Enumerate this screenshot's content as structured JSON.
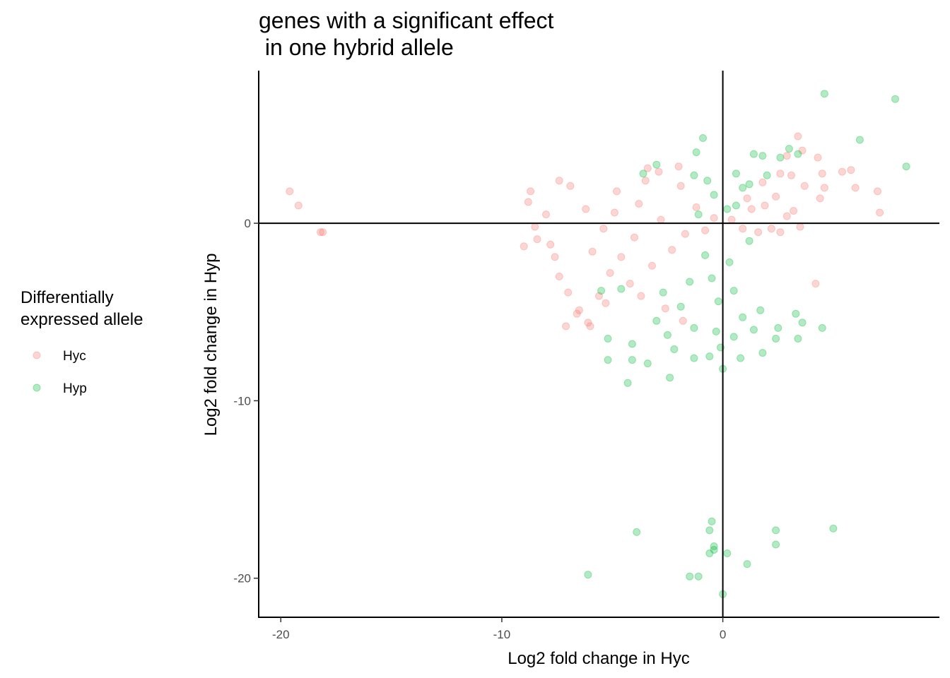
{
  "chart_data": {
    "type": "scatter",
    "title_lines": [
      "genes with a significant effect",
      " in one hybrid allele"
    ],
    "xlabel": "Log2 fold change in Hyc",
    "ylabel": "Log2 fold change in Hyp",
    "xlim": [
      -21,
      9.8
    ],
    "ylim": [
      -22.2,
      8.6
    ],
    "x_ticks": [
      -20,
      -10,
      0
    ],
    "y_ticks": [
      -20,
      -10,
      0
    ],
    "grid": false,
    "reference_lines": {
      "x": 0,
      "y": 0
    },
    "legend": {
      "title_lines": [
        "Differentially",
        "expressed allele"
      ],
      "placement": "left"
    },
    "series": [
      {
        "name": "Hyc",
        "color": "#F8766D",
        "points": [
          [
            -19.6,
            1.8
          ],
          [
            -19.2,
            1.0
          ],
          [
            -18.2,
            -0.5
          ],
          [
            -18.1,
            -0.5
          ],
          [
            -8.8,
            1.2
          ],
          [
            -8.7,
            1.8
          ],
          [
            -9.0,
            -1.3
          ],
          [
            -8.5,
            -0.2
          ],
          [
            -8.4,
            -0.9
          ],
          [
            -7.4,
            2.4
          ],
          [
            -6.9,
            2.1
          ],
          [
            -7.8,
            -1.2
          ],
          [
            -7.6,
            -1.9
          ],
          [
            -7.4,
            -3.0
          ],
          [
            -7.0,
            -3.9
          ],
          [
            -7.1,
            -5.8
          ],
          [
            -6.6,
            -5.1
          ],
          [
            -6.5,
            -4.9
          ],
          [
            -6.1,
            -5.6
          ],
          [
            -6.0,
            -5.8
          ],
          [
            -5.6,
            -4.1
          ],
          [
            -5.3,
            -4.5
          ],
          [
            -5.1,
            -2.8
          ],
          [
            -4.8,
            1.8
          ],
          [
            -4.2,
            -3.4
          ],
          [
            -3.5,
            2.4
          ],
          [
            -3.4,
            3.1
          ],
          [
            -2.9,
            2.9
          ],
          [
            -2.0,
            3.2
          ],
          [
            -1.9,
            2.1
          ],
          [
            -3.7,
            -4.1
          ],
          [
            -2.6,
            -4.8
          ],
          [
            -1.8,
            -5.5
          ],
          [
            1.8,
            2.3
          ],
          [
            2.6,
            2.8
          ],
          [
            2.9,
            3.8
          ],
          [
            3.4,
            4.9
          ],
          [
            3.6,
            4.1
          ],
          [
            3.1,
            2.7
          ],
          [
            3.7,
            2.1
          ],
          [
            4.3,
            3.7
          ],
          [
            4.5,
            2.8
          ],
          [
            4.4,
            1.4
          ],
          [
            4.6,
            2.0
          ],
          [
            5.4,
            2.9
          ],
          [
            5.8,
            3.0
          ],
          [
            6.0,
            2.0
          ],
          [
            7.0,
            1.8
          ],
          [
            7.1,
            0.6
          ],
          [
            3.5,
            -0.2
          ],
          [
            3.2,
            0.7
          ],
          [
            2.9,
            0.4
          ],
          [
            2.6,
            -0.5
          ],
          [
            4.2,
            -3.4
          ],
          [
            2.4,
            1.5
          ],
          [
            1.9,
            1.0
          ],
          [
            2.2,
            -0.3
          ],
          [
            -8.0,
            0.5
          ],
          [
            -6.2,
            0.8
          ],
          [
            -5.9,
            -1.6
          ],
          [
            -5.4,
            -0.3
          ],
          [
            -4.9,
            0.6
          ],
          [
            -4.6,
            -1.9
          ],
          [
            -4.0,
            -0.8
          ],
          [
            -3.8,
            1.1
          ],
          [
            -3.2,
            -2.4
          ],
          [
            -2.8,
            0.2
          ],
          [
            -2.3,
            -1.5
          ],
          [
            -1.7,
            -0.6
          ],
          [
            -1.2,
            0.9
          ],
          [
            -0.8,
            -0.4
          ],
          [
            -0.4,
            0.3
          ],
          [
            0.4,
            0.2
          ],
          [
            0.9,
            -0.3
          ],
          [
            1.3,
            0.8
          ],
          [
            1.6,
            -0.5
          ],
          [
            1.1,
            1.4
          ]
        ]
      },
      {
        "name": "Hyp",
        "color": "#00BA38",
        "points": [
          [
            4.6,
            7.3
          ],
          [
            7.8,
            7.0
          ],
          [
            6.2,
            4.7
          ],
          [
            8.3,
            3.2
          ],
          [
            -0.9,
            4.8
          ],
          [
            -1.2,
            4.0
          ],
          [
            1.4,
            3.9
          ],
          [
            1.8,
            3.8
          ],
          [
            2.6,
            3.7
          ],
          [
            3.0,
            4.2
          ],
          [
            3.4,
            3.9
          ],
          [
            -3.6,
            2.8
          ],
          [
            -3.0,
            3.3
          ],
          [
            -1.3,
            2.7
          ],
          [
            -0.7,
            2.4
          ],
          [
            0.6,
            2.8
          ],
          [
            1.2,
            2.2
          ],
          [
            2.0,
            2.7
          ],
          [
            -5.5,
            -3.8
          ],
          [
            -4.6,
            -3.7
          ],
          [
            -5.2,
            -6.5
          ],
          [
            -4.1,
            -6.8
          ],
          [
            -5.2,
            -7.7
          ],
          [
            -4.1,
            -7.7
          ],
          [
            -3.4,
            -7.9
          ],
          [
            -4.3,
            -9.0
          ],
          [
            -2.4,
            -8.7
          ],
          [
            -2.2,
            -7.1
          ],
          [
            -1.3,
            -7.6
          ],
          [
            -0.6,
            -7.5
          ],
          [
            0.0,
            -8.2
          ],
          [
            0.8,
            -7.6
          ],
          [
            1.8,
            -7.3
          ],
          [
            2.4,
            -6.5
          ],
          [
            2.5,
            -5.9
          ],
          [
            3.3,
            -5.1
          ],
          [
            3.4,
            -6.5
          ],
          [
            3.6,
            -5.6
          ],
          [
            4.5,
            -5.9
          ],
          [
            -6.1,
            -19.8
          ],
          [
            -3.9,
            -17.4
          ],
          [
            -1.5,
            -19.9
          ],
          [
            -1.1,
            -19.9
          ],
          [
            -0.6,
            -18.6
          ],
          [
            -0.4,
            -18.4
          ],
          [
            -0.4,
            -18.2
          ],
          [
            -0.6,
            -17.3
          ],
          [
            -0.5,
            -16.8
          ],
          [
            0.2,
            -18.6
          ],
          [
            1.1,
            -19.2
          ],
          [
            2.4,
            -18.1
          ],
          [
            2.4,
            -17.3
          ],
          [
            5.0,
            -17.2
          ],
          [
            0.0,
            -20.9
          ],
          [
            -0.8,
            -1.8
          ],
          [
            -0.5,
            -3.1
          ],
          [
            0.3,
            -2.2
          ],
          [
            -0.2,
            -4.4
          ],
          [
            0.5,
            -3.8
          ],
          [
            -1.5,
            -3.3
          ],
          [
            1.2,
            -1.0
          ],
          [
            0.6,
            1.0
          ],
          [
            -0.4,
            1.6
          ],
          [
            0.9,
            2.0
          ],
          [
            -1.1,
            0.5
          ],
          [
            0.2,
            0.8
          ],
          [
            -2.7,
            -3.9
          ],
          [
            -1.9,
            -4.7
          ],
          [
            -1.3,
            -5.9
          ],
          [
            -0.3,
            -6.1
          ],
          [
            0.5,
            -6.4
          ],
          [
            1.4,
            -6.0
          ],
          [
            -2.5,
            -6.3
          ],
          [
            -3.0,
            -5.5
          ],
          [
            1.7,
            -4.9
          ],
          [
            -0.1,
            -7.0
          ],
          [
            0.9,
            -5.3
          ]
        ]
      }
    ]
  }
}
